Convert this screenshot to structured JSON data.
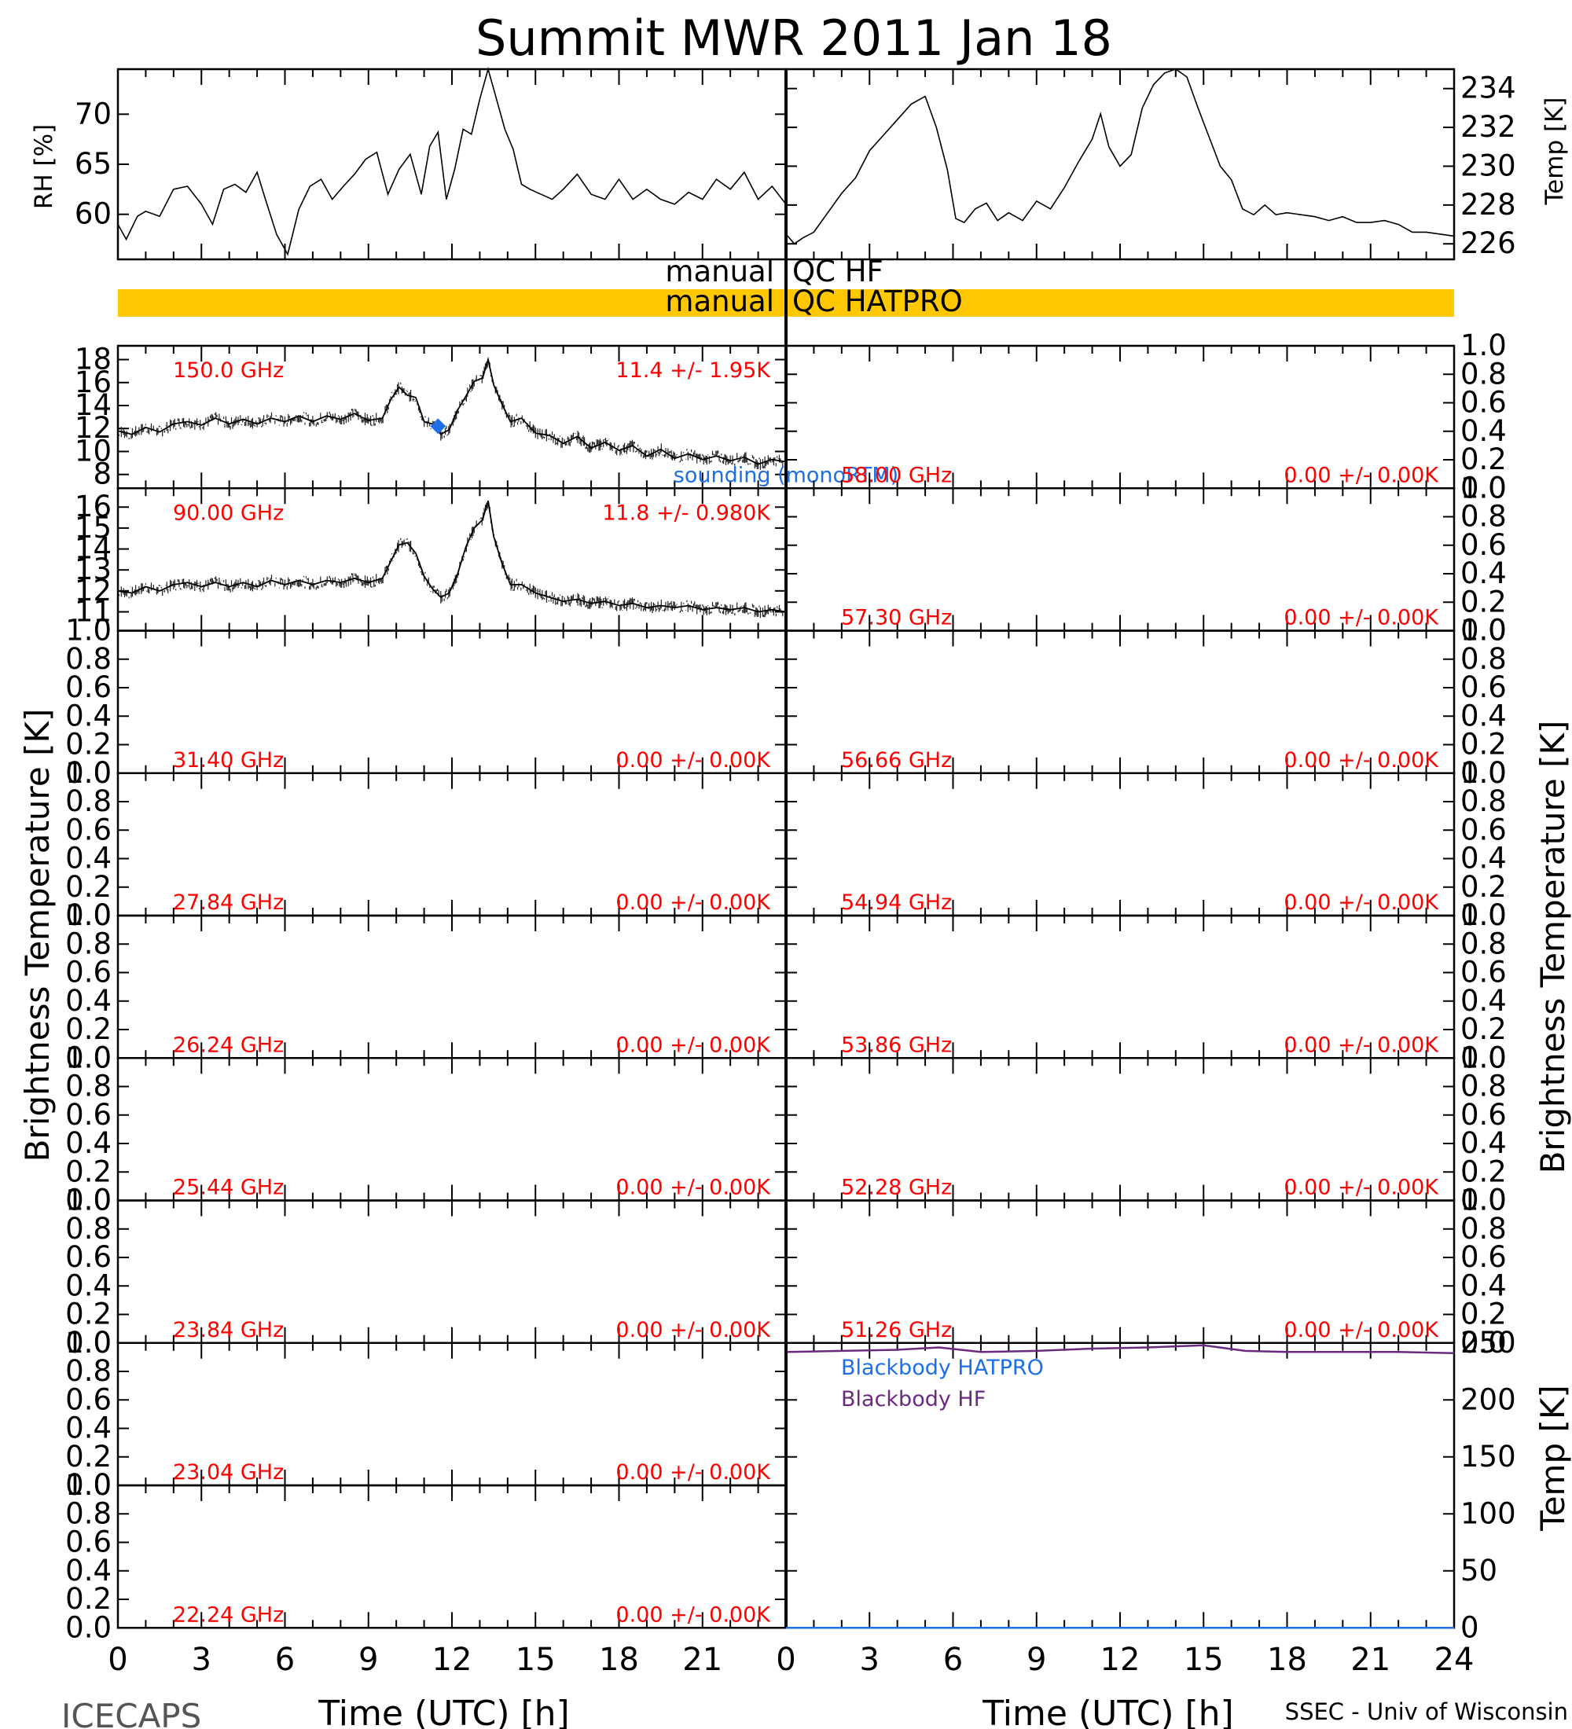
{
  "chart_data": {
    "type": "line",
    "title": "Summit MWR 2011 Jan 18",
    "footer_left": "ICECAPS",
    "footer_right": "SSEC - Univ of Wisconsin",
    "xlabel": "Time (UTC) [h]",
    "xlim": [
      0,
      24
    ],
    "xticks": [
      "0",
      "3",
      "6",
      "9",
      "12",
      "15",
      "18",
      "21",
      "24"
    ],
    "left_xticks": [
      "0",
      "3",
      "6",
      "9",
      "12",
      "15",
      "18",
      "21"
    ],
    "tb_ylabel": "Brightness Temperature [K]",
    "qc_labels": {
      "hf_left": "manual",
      "hf_right": "QC HF",
      "hatpro_left": "manual",
      "hatpro_right": "QC HATPRO",
      "hatpro_color": "#ffc800"
    },
    "rh_panel": {
      "ylabel": "RH [%]",
      "yticks": [
        "60",
        "65",
        "70"
      ],
      "ylim": [
        55.5,
        74.5
      ],
      "x": [
        0,
        0.3,
        0.7,
        1,
        1.5,
        2,
        2.5,
        3,
        3.4,
        3.8,
        4.2,
        4.6,
        5,
        5.3,
        5.7,
        6.1,
        6.5,
        6.9,
        7.3,
        7.7,
        8.1,
        8.5,
        8.9,
        9.3,
        9.7,
        10.1,
        10.5,
        10.9,
        11.2,
        11.5,
        11.8,
        12.1,
        12.4,
        12.7,
        13,
        13.3,
        13.6,
        13.9,
        14.2,
        14.5,
        14.8,
        15.2,
        15.6,
        16,
        16.5,
        17,
        17.5,
        18,
        18.5,
        19,
        19.5,
        20,
        20.5,
        21,
        21.5,
        22,
        22.5,
        23,
        23.5,
        24
      ],
      "values": [
        59,
        57.5,
        59.8,
        60.3,
        59.8,
        62.5,
        62.8,
        61,
        59,
        62.5,
        63,
        62.2,
        64.2,
        61.5,
        58,
        56,
        60.5,
        62.8,
        63.5,
        61.5,
        62.8,
        64,
        65.5,
        66.2,
        62,
        64.5,
        66,
        62,
        66.8,
        68.2,
        61.5,
        64.5,
        68.5,
        68,
        71.5,
        74.5,
        71.5,
        68.5,
        66.5,
        63,
        62.5,
        62,
        61.5,
        62.5,
        64,
        62,
        61.5,
        63.5,
        61.5,
        62.5,
        61.5,
        61,
        62.2,
        61.5,
        63.5,
        62.5,
        64.2,
        61.5,
        62.8,
        61
      ]
    },
    "temp_panel": {
      "ylabel": "Temp [K]",
      "yticks": [
        "226",
        "228",
        "230",
        "232",
        "234"
      ],
      "ylim": [
        225.2,
        235
      ],
      "x": [
        0,
        0.3,
        0.6,
        1,
        1.5,
        2,
        2.5,
        3,
        3.5,
        4,
        4.5,
        5,
        5.4,
        5.8,
        6.1,
        6.4,
        6.8,
        7.2,
        7.6,
        8,
        8.5,
        9,
        9.5,
        10,
        10.5,
        11,
        11.3,
        11.6,
        12,
        12.4,
        12.8,
        13.2,
        13.6,
        14,
        14.4,
        14.8,
        15.2,
        15.6,
        16,
        16.4,
        16.8,
        17.2,
        17.6,
        18,
        18.5,
        19,
        19.5,
        20,
        20.5,
        21,
        21.5,
        22,
        22.5,
        23,
        23.5,
        24
      ],
      "values": [
        226.5,
        226,
        226.3,
        226.6,
        227.6,
        228.6,
        229.4,
        230.8,
        231.6,
        232.4,
        233.2,
        233.6,
        232,
        229.8,
        227.3,
        227.1,
        227.8,
        228.1,
        227.2,
        227.6,
        227.2,
        228.2,
        227.8,
        228.9,
        230.2,
        231.4,
        232.7,
        231,
        230,
        230.6,
        233,
        234.2,
        234.8,
        235,
        234.6,
        233,
        231.5,
        230,
        229.3,
        227.8,
        227.5,
        228,
        227.5,
        227.6,
        227.5,
        227.4,
        227.2,
        227.4,
        227.1,
        227.1,
        227.2,
        227,
        226.6,
        226.6,
        226.5,
        226.4
      ]
    },
    "tb_panels": [
      {
        "freq": "150.0 GHz",
        "stats": "11.4 +/-  1.95K",
        "yticks": [
          "8",
          "10",
          "12",
          "14",
          "16",
          "18"
        ],
        "ylim": [
          6.8,
          19.2
        ],
        "x": [
          0,
          0.5,
          1,
          1.5,
          2,
          2.5,
          3,
          3.5,
          4,
          4.5,
          5,
          5.5,
          6,
          6.5,
          7,
          7.5,
          8,
          8.5,
          9,
          9.5,
          9.8,
          10.1,
          10.4,
          10.7,
          11,
          11.3,
          11.6,
          11.9,
          12.2,
          12.5,
          12.8,
          13.1,
          13.3,
          13.5,
          13.8,
          14.1,
          14.5,
          15,
          15.5,
          16,
          16.5,
          17,
          17.5,
          18,
          18.5,
          19,
          19.5,
          20,
          20.5,
          21,
          21.5,
          22,
          22.5,
          23,
          23.5,
          24
        ],
        "values": [
          11.8,
          11.5,
          12.1,
          11.7,
          12.4,
          12.6,
          12.3,
          12.9,
          12.4,
          12.8,
          12.4,
          12.9,
          12.6,
          13.1,
          12.6,
          13.1,
          12.8,
          13.3,
          12.7,
          12.9,
          14.5,
          15.6,
          14.9,
          14.7,
          12.6,
          12.4,
          11.5,
          11.9,
          13.6,
          14.8,
          16.1,
          16.4,
          18,
          15.8,
          14.1,
          12.6,
          12.9,
          11.6,
          11.4,
          10.7,
          11.3,
          10.3,
          10.8,
          10.1,
          10.5,
          9.6,
          10.2,
          9.4,
          9.8,
          9.3,
          9.6,
          9.2,
          9.5,
          8.9,
          9.3,
          9.1
        ],
        "sounding_x": 11.5,
        "sounding_y": 12.2,
        "sounding_label": "sounding (monoRTM)",
        "sounding_color": "#1e6ee6"
      },
      {
        "freq": "90.00 GHz",
        "stats": "11.8 +/- 0.980K",
        "yticks": [
          "11",
          "12",
          "13",
          "14",
          "15",
          "16"
        ],
        "ylim": [
          10.1,
          16.9
        ],
        "x": [
          0,
          0.5,
          1,
          1.5,
          2,
          2.5,
          3,
          3.5,
          4,
          4.5,
          5,
          5.5,
          6,
          6.5,
          7,
          7.5,
          8,
          8.5,
          9,
          9.5,
          9.8,
          10.1,
          10.4,
          10.7,
          11,
          11.3,
          11.6,
          11.9,
          12.2,
          12.5,
          12.8,
          13.1,
          13.3,
          13.5,
          13.8,
          14.1,
          14.5,
          15,
          15.5,
          16,
          16.5,
          17,
          17.5,
          18,
          18.5,
          19,
          19.5,
          20,
          20.5,
          21,
          21.5,
          22,
          22.5,
          23,
          23.5,
          24
        ],
        "values": [
          12,
          11.9,
          12.2,
          12,
          12.3,
          12.4,
          12.2,
          12.4,
          12.2,
          12.4,
          12.2,
          12.5,
          12.3,
          12.5,
          12.3,
          12.5,
          12.4,
          12.6,
          12.4,
          12.6,
          13.4,
          14.2,
          14.3,
          13.8,
          12.7,
          12.1,
          11.7,
          11.9,
          12.8,
          14.1,
          15,
          15.4,
          16.3,
          14.6,
          13.3,
          12.3,
          12.3,
          11.9,
          11.7,
          11.5,
          11.6,
          11.4,
          11.5,
          11.3,
          11.4,
          11.2,
          11.3,
          11.2,
          11.3,
          11.1,
          11.2,
          11.1,
          11.2,
          11,
          11.1,
          11
        ]
      },
      {
        "freq": "31.40 GHz",
        "stats": "0.00 +/-  0.00K",
        "yticks": [
          "0.0",
          "0.2",
          "0.4",
          "0.6",
          "0.8",
          "1.0"
        ]
      },
      {
        "freq": "27.84 GHz",
        "stats": "0.00 +/-  0.00K",
        "yticks": [
          "0.0",
          "0.2",
          "0.4",
          "0.6",
          "0.8",
          "1.0"
        ]
      },
      {
        "freq": "26.24 GHz",
        "stats": "0.00 +/-  0.00K",
        "yticks": [
          "0.0",
          "0.2",
          "0.4",
          "0.6",
          "0.8",
          "1.0"
        ]
      },
      {
        "freq": "25.44 GHz",
        "stats": "0.00 +/-  0.00K",
        "yticks": [
          "0.0",
          "0.2",
          "0.4",
          "0.6",
          "0.8",
          "1.0"
        ]
      },
      {
        "freq": "23.84 GHz",
        "stats": "0.00 +/-  0.00K",
        "yticks": [
          "0.0",
          "0.2",
          "0.4",
          "0.6",
          "0.8",
          "1.0"
        ]
      },
      {
        "freq": "23.04 GHz",
        "stats": "0.00 +/-  0.00K",
        "yticks": [
          "0.0",
          "0.2",
          "0.4",
          "0.6",
          "0.8",
          "1.0"
        ]
      },
      {
        "freq": "22.24 GHz",
        "stats": "0.00 +/-  0.00K",
        "yticks": [
          "0.0",
          "0.2",
          "0.4",
          "0.6",
          "0.8",
          "1.0"
        ]
      },
      {
        "freq": "58.00 GHz",
        "stats": "0.00 +/-  0.00K",
        "yticks": [
          "0.0",
          "0.2",
          "0.4",
          "0.6",
          "0.8",
          "1.0"
        ]
      },
      {
        "freq": "57.30 GHz",
        "stats": "0.00 +/-  0.00K",
        "yticks": [
          "0.0",
          "0.2",
          "0.4",
          "0.6",
          "0.8",
          "1.0"
        ]
      },
      {
        "freq": "56.66 GHz",
        "stats": "0.00 +/-  0.00K",
        "yticks": [
          "0.0",
          "0.2",
          "0.4",
          "0.6",
          "0.8",
          "1.0"
        ]
      },
      {
        "freq": "54.94 GHz",
        "stats": "0.00 +/-  0.00K",
        "yticks": [
          "0.0",
          "0.2",
          "0.4",
          "0.6",
          "0.8",
          "1.0"
        ]
      },
      {
        "freq": "53.86 GHz",
        "stats": "0.00 +/-  0.00K",
        "yticks": [
          "0.0",
          "0.2",
          "0.4",
          "0.6",
          "0.8",
          "1.0"
        ]
      },
      {
        "freq": "52.28 GHz",
        "stats": "0.00 +/-  0.00K",
        "yticks": [
          "0.0",
          "0.2",
          "0.4",
          "0.6",
          "0.8",
          "1.0"
        ]
      },
      {
        "freq": "51.26 GHz",
        "stats": "0.00 +/-  0.00K",
        "yticks": [
          "0.0",
          "0.2",
          "0.4",
          "0.6",
          "0.8",
          "1.0"
        ]
      }
    ],
    "blackbody_panel": {
      "ylabel": "Temp [K]",
      "yticks": [
        "0",
        "50",
        "100",
        "150",
        "200",
        "250"
      ],
      "ylim": [
        0,
        250
      ],
      "series": [
        {
          "name": "Blackbody HATPRO",
          "color": "#1e6ee6",
          "x": [
            0,
            24
          ],
          "values": [
            0,
            0
          ]
        },
        {
          "name": "Blackbody HF",
          "color": "#6a2a80",
          "x": [
            0,
            2,
            4,
            5.5,
            7,
            9,
            11,
            13,
            15,
            16.5,
            18,
            20,
            22,
            24
          ],
          "values": [
            242,
            243,
            244,
            246,
            242,
            243,
            245,
            246,
            248,
            243,
            242,
            242,
            242,
            241
          ]
        }
      ]
    }
  }
}
